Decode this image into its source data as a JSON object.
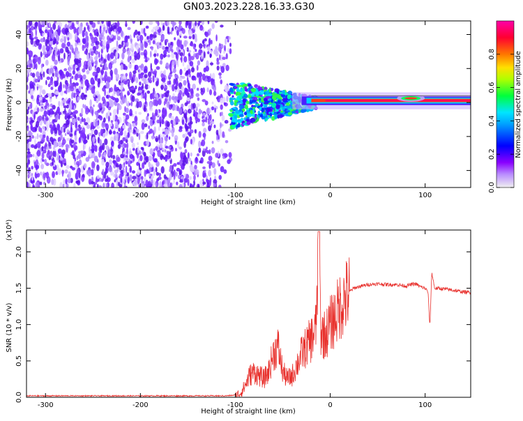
{
  "figure_title": "GN03.2023.228.16.33.G30",
  "colors": {
    "snr_line": "#e8302c",
    "axis": "#000000",
    "spectro_purple": "#6a1bff",
    "spectro_light": "#e2d2ff"
  },
  "chart_data": [
    {
      "type": "heatmap",
      "title": "",
      "xlabel": "Height of straight line (km)",
      "ylabel": "Frequency (Hz)",
      "xlim": [
        -320,
        148
      ],
      "ylim": [
        -50,
        48
      ],
      "xticks": [
        -300,
        -200,
        -100,
        0,
        100
      ],
      "xtick_labels": [
        "-300",
        "-200",
        "-100",
        "0",
        "100"
      ],
      "yticks": [
        -40,
        -20,
        0,
        20,
        40
      ],
      "ytick_labels": [
        "-40",
        "-20",
        "0",
        "20",
        "40"
      ],
      "regions": [
        {
          "x": [
            -320,
            -105
          ],
          "freq_band": [
            -50,
            48
          ],
          "level": "low noise (0.1-0.3)"
        },
        {
          "x": [
            -105,
            -20
          ],
          "freq_band": [
            -12,
            8
          ],
          "level": "mid (0.2-0.5)"
        },
        {
          "x": [
            -20,
            148
          ],
          "freq_band": [
            0,
            2
          ],
          "level": "high (0.8-1.0)"
        }
      ],
      "colorbar": {
        "label": "Normalized spectral amplitude",
        "range": [
          0,
          1
        ],
        "ticks": [
          0.0,
          0.2,
          0.4,
          0.6,
          0.8
        ],
        "tick_labels": [
          "0.0",
          "0.2",
          "0.4",
          "0.6",
          "0.8"
        ],
        "colors": [
          "#f0f0f0",
          "#8a00ff",
          "#0000ff",
          "#00e5ff",
          "#00ff3c",
          "#e5ff00",
          "#ff7700",
          "#ff0030",
          "#ff00a8"
        ]
      }
    },
    {
      "type": "line",
      "title": "",
      "xlabel": "Height of straight line (km)",
      "ylabel": "SNR (10 * v/v)",
      "y_multiplier": "(x10⁴)",
      "xlim": [
        -320,
        148
      ],
      "ylim": [
        0,
        2.3
      ],
      "xticks": [
        -300,
        -200,
        -100,
        0,
        100
      ],
      "xtick_labels": [
        "-300",
        "-200",
        "-100",
        "0",
        "100"
      ],
      "yticks": [
        0,
        0.5,
        1.0,
        1.5,
        2.0
      ],
      "ytick_labels": [
        "0.0",
        "0.5",
        "1.0",
        "1.5",
        "2.0"
      ],
      "series": [
        {
          "values_note": "",
          "x": [
            -320,
            -300,
            -250,
            -200,
            -150,
            -110,
            -100,
            -95,
            -90,
            -85,
            -80,
            -75,
            -70,
            -65,
            -60,
            -55,
            -50,
            -45,
            -40,
            -35,
            -30,
            -25,
            -20,
            -15,
            -12,
            -10,
            -5,
            0,
            5,
            10,
            15,
            20,
            25,
            30,
            40,
            50,
            60,
            70,
            80,
            85,
            90,
            95,
            100,
            103,
            105,
            107,
            110,
            120,
            130,
            140,
            148
          ],
          "y": [
            0.02,
            0.02,
            0.02,
            0.02,
            0.02,
            0.02,
            0.03,
            0.05,
            0.15,
            0.3,
            0.35,
            0.3,
            0.25,
            0.35,
            0.6,
            0.7,
            0.35,
            0.25,
            0.3,
            0.45,
            0.6,
            0.7,
            0.8,
            0.95,
            2.25,
            0.9,
            0.85,
            1.0,
            1.1,
            1.25,
            1.35,
            1.45,
            1.5,
            1.52,
            1.55,
            1.56,
            1.55,
            1.55,
            1.53,
            1.55,
            1.56,
            1.52,
            1.5,
            1.45,
            0.97,
            1.72,
            1.5,
            1.49,
            1.47,
            1.45,
            1.44
          ]
        }
      ]
    }
  ]
}
